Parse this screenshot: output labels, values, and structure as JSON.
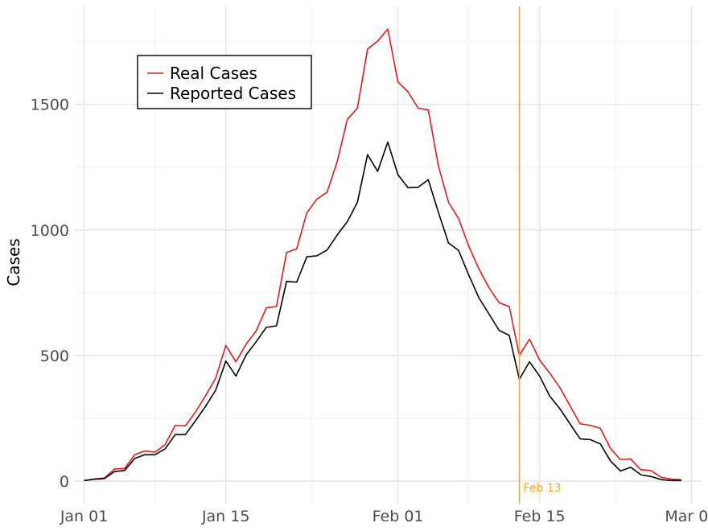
{
  "chart_data": {
    "type": "line",
    "ylabel": "Cases",
    "xlabel": "",
    "ylim": [
      -90,
      1890
    ],
    "xlim": [
      "2019-12-31",
      "2020-03-02"
    ],
    "x_ticks": [
      "2020-01-01",
      "2020-01-15",
      "2020-02-01",
      "2020-02-15",
      "2020-03-01"
    ],
    "x_tick_labels": [
      "Jan 01",
      "Jan 15",
      "Feb 01",
      "Feb 15",
      "Mar 01"
    ],
    "y_ticks": [
      0,
      500,
      1000,
      1500
    ],
    "y_tick_labels": [
      "0",
      "500",
      "1000",
      "1500"
    ],
    "grid": true,
    "legend_position": "top-left",
    "x": [
      "2020-01-01",
      "2020-01-02",
      "2020-01-03",
      "2020-01-04",
      "2020-01-05",
      "2020-01-06",
      "2020-01-07",
      "2020-01-08",
      "2020-01-09",
      "2020-01-10",
      "2020-01-11",
      "2020-01-12",
      "2020-01-13",
      "2020-01-14",
      "2020-01-15",
      "2020-01-16",
      "2020-01-17",
      "2020-01-18",
      "2020-01-19",
      "2020-01-20",
      "2020-01-21",
      "2020-01-22",
      "2020-01-23",
      "2020-01-24",
      "2020-01-25",
      "2020-01-26",
      "2020-01-27",
      "2020-01-28",
      "2020-01-29",
      "2020-01-30",
      "2020-01-31",
      "2020-02-01",
      "2020-02-02",
      "2020-02-03",
      "2020-02-04",
      "2020-02-05",
      "2020-02-06",
      "2020-02-07",
      "2020-02-08",
      "2020-02-09",
      "2020-02-10",
      "2020-02-11",
      "2020-02-12",
      "2020-02-13",
      "2020-02-14",
      "2020-02-15",
      "2020-02-16",
      "2020-02-17",
      "2020-02-18",
      "2020-02-19",
      "2020-02-20",
      "2020-02-21",
      "2020-02-22",
      "2020-02-23",
      "2020-02-24",
      "2020-02-25",
      "2020-02-26",
      "2020-02-27",
      "2020-02-28",
      "2020-02-29"
    ],
    "series": [
      {
        "name": "Real Cases",
        "color": "#e31a1c",
        "values": [
          2,
          8,
          12,
          48,
          50,
          105,
          120,
          115,
          145,
          222,
          220,
          275,
          340,
          410,
          540,
          475,
          545,
          598,
          690,
          695,
          910,
          925,
          1068,
          1123,
          1150,
          1272,
          1440,
          1485,
          1720,
          1752,
          1800,
          1590,
          1550,
          1485,
          1478,
          1255,
          1110,
          1045,
          935,
          845,
          770,
          710,
          695,
          500,
          565,
          482,
          430,
          372,
          300,
          228,
          222,
          210,
          130,
          85,
          88,
          45,
          42,
          15,
          8,
          5
        ]
      },
      {
        "name": "Reported Cases",
        "color": "#000000",
        "values": [
          2,
          7,
          10,
          38,
          42,
          90,
          105,
          105,
          128,
          185,
          185,
          240,
          298,
          362,
          478,
          418,
          502,
          555,
          612,
          618,
          795,
          792,
          893,
          897,
          920,
          980,
          1033,
          1110,
          1300,
          1233,
          1350,
          1220,
          1168,
          1170,
          1200,
          1070,
          948,
          918,
          820,
          730,
          665,
          600,
          580,
          405,
          475,
          418,
          338,
          288,
          228,
          168,
          165,
          148,
          80,
          40,
          55,
          25,
          18,
          6,
          2,
          2
        ]
      }
    ],
    "annotations": [
      {
        "type": "vline",
        "x": "2020-02-13",
        "label": "Feb 13",
        "color": "#f5a623"
      }
    ]
  }
}
